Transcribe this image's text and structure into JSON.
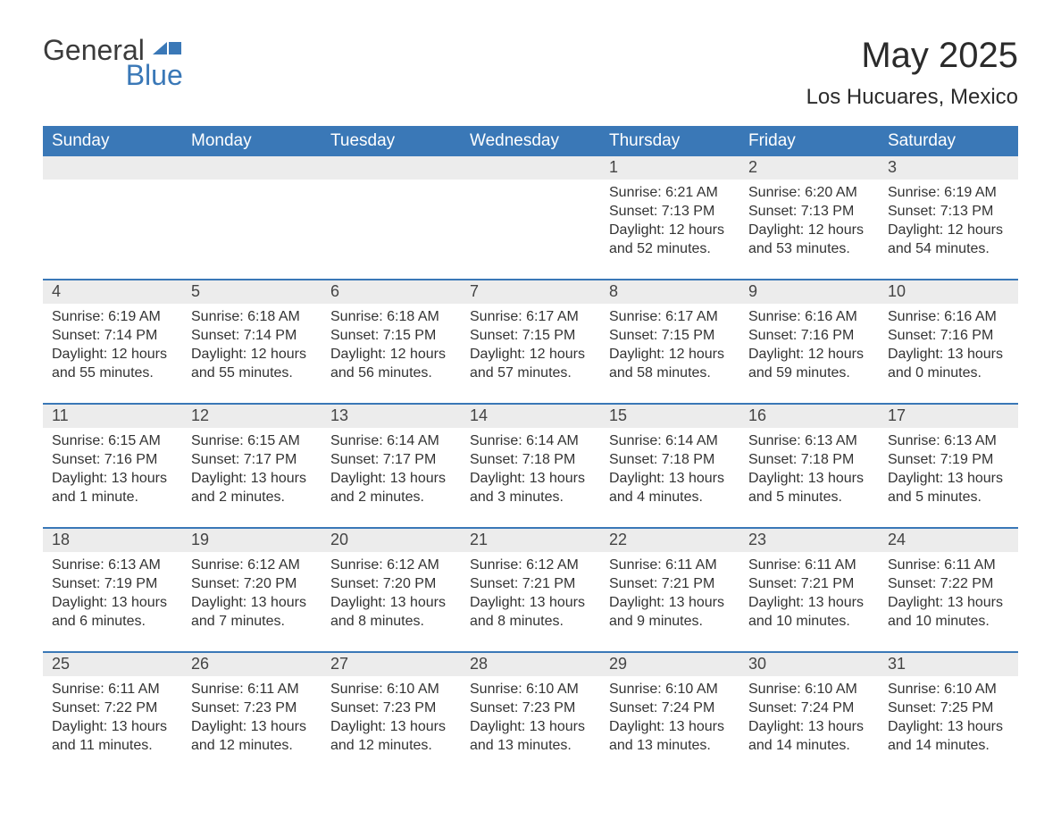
{
  "brand": {
    "general": "General",
    "blue": "Blue"
  },
  "title": "May 2025",
  "location": "Los Hucuares, Mexico",
  "colors": {
    "header_bg": "#3a78b7",
    "header_text": "#ffffff",
    "daynum_bg": "#ececec",
    "text": "#333333",
    "rule": "#3a78b7"
  },
  "daynames": [
    "Sunday",
    "Monday",
    "Tuesday",
    "Wednesday",
    "Thursday",
    "Friday",
    "Saturday"
  ],
  "weeks": [
    [
      null,
      null,
      null,
      null,
      {
        "n": "1",
        "sunrise": "Sunrise: 6:21 AM",
        "sunset": "Sunset: 7:13 PM",
        "daylight": "Daylight: 12 hours and 52 minutes."
      },
      {
        "n": "2",
        "sunrise": "Sunrise: 6:20 AM",
        "sunset": "Sunset: 7:13 PM",
        "daylight": "Daylight: 12 hours and 53 minutes."
      },
      {
        "n": "3",
        "sunrise": "Sunrise: 6:19 AM",
        "sunset": "Sunset: 7:13 PM",
        "daylight": "Daylight: 12 hours and 54 minutes."
      }
    ],
    [
      {
        "n": "4",
        "sunrise": "Sunrise: 6:19 AM",
        "sunset": "Sunset: 7:14 PM",
        "daylight": "Daylight: 12 hours and 55 minutes."
      },
      {
        "n": "5",
        "sunrise": "Sunrise: 6:18 AM",
        "sunset": "Sunset: 7:14 PM",
        "daylight": "Daylight: 12 hours and 55 minutes."
      },
      {
        "n": "6",
        "sunrise": "Sunrise: 6:18 AM",
        "sunset": "Sunset: 7:15 PM",
        "daylight": "Daylight: 12 hours and 56 minutes."
      },
      {
        "n": "7",
        "sunrise": "Sunrise: 6:17 AM",
        "sunset": "Sunset: 7:15 PM",
        "daylight": "Daylight: 12 hours and 57 minutes."
      },
      {
        "n": "8",
        "sunrise": "Sunrise: 6:17 AM",
        "sunset": "Sunset: 7:15 PM",
        "daylight": "Daylight: 12 hours and 58 minutes."
      },
      {
        "n": "9",
        "sunrise": "Sunrise: 6:16 AM",
        "sunset": "Sunset: 7:16 PM",
        "daylight": "Daylight: 12 hours and 59 minutes."
      },
      {
        "n": "10",
        "sunrise": "Sunrise: 6:16 AM",
        "sunset": "Sunset: 7:16 PM",
        "daylight": "Daylight: 13 hours and 0 minutes."
      }
    ],
    [
      {
        "n": "11",
        "sunrise": "Sunrise: 6:15 AM",
        "sunset": "Sunset: 7:16 PM",
        "daylight": "Daylight: 13 hours and 1 minute."
      },
      {
        "n": "12",
        "sunrise": "Sunrise: 6:15 AM",
        "sunset": "Sunset: 7:17 PM",
        "daylight": "Daylight: 13 hours and 2 minutes."
      },
      {
        "n": "13",
        "sunrise": "Sunrise: 6:14 AM",
        "sunset": "Sunset: 7:17 PM",
        "daylight": "Daylight: 13 hours and 2 minutes."
      },
      {
        "n": "14",
        "sunrise": "Sunrise: 6:14 AM",
        "sunset": "Sunset: 7:18 PM",
        "daylight": "Daylight: 13 hours and 3 minutes."
      },
      {
        "n": "15",
        "sunrise": "Sunrise: 6:14 AM",
        "sunset": "Sunset: 7:18 PM",
        "daylight": "Daylight: 13 hours and 4 minutes."
      },
      {
        "n": "16",
        "sunrise": "Sunrise: 6:13 AM",
        "sunset": "Sunset: 7:18 PM",
        "daylight": "Daylight: 13 hours and 5 minutes."
      },
      {
        "n": "17",
        "sunrise": "Sunrise: 6:13 AM",
        "sunset": "Sunset: 7:19 PM",
        "daylight": "Daylight: 13 hours and 5 minutes."
      }
    ],
    [
      {
        "n": "18",
        "sunrise": "Sunrise: 6:13 AM",
        "sunset": "Sunset: 7:19 PM",
        "daylight": "Daylight: 13 hours and 6 minutes."
      },
      {
        "n": "19",
        "sunrise": "Sunrise: 6:12 AM",
        "sunset": "Sunset: 7:20 PM",
        "daylight": "Daylight: 13 hours and 7 minutes."
      },
      {
        "n": "20",
        "sunrise": "Sunrise: 6:12 AM",
        "sunset": "Sunset: 7:20 PM",
        "daylight": "Daylight: 13 hours and 8 minutes."
      },
      {
        "n": "21",
        "sunrise": "Sunrise: 6:12 AM",
        "sunset": "Sunset: 7:21 PM",
        "daylight": "Daylight: 13 hours and 8 minutes."
      },
      {
        "n": "22",
        "sunrise": "Sunrise: 6:11 AM",
        "sunset": "Sunset: 7:21 PM",
        "daylight": "Daylight: 13 hours and 9 minutes."
      },
      {
        "n": "23",
        "sunrise": "Sunrise: 6:11 AM",
        "sunset": "Sunset: 7:21 PM",
        "daylight": "Daylight: 13 hours and 10 minutes."
      },
      {
        "n": "24",
        "sunrise": "Sunrise: 6:11 AM",
        "sunset": "Sunset: 7:22 PM",
        "daylight": "Daylight: 13 hours and 10 minutes."
      }
    ],
    [
      {
        "n": "25",
        "sunrise": "Sunrise: 6:11 AM",
        "sunset": "Sunset: 7:22 PM",
        "daylight": "Daylight: 13 hours and 11 minutes."
      },
      {
        "n": "26",
        "sunrise": "Sunrise: 6:11 AM",
        "sunset": "Sunset: 7:23 PM",
        "daylight": "Daylight: 13 hours and 12 minutes."
      },
      {
        "n": "27",
        "sunrise": "Sunrise: 6:10 AM",
        "sunset": "Sunset: 7:23 PM",
        "daylight": "Daylight: 13 hours and 12 minutes."
      },
      {
        "n": "28",
        "sunrise": "Sunrise: 6:10 AM",
        "sunset": "Sunset: 7:23 PM",
        "daylight": "Daylight: 13 hours and 13 minutes."
      },
      {
        "n": "29",
        "sunrise": "Sunrise: 6:10 AM",
        "sunset": "Sunset: 7:24 PM",
        "daylight": "Daylight: 13 hours and 13 minutes."
      },
      {
        "n": "30",
        "sunrise": "Sunrise: 6:10 AM",
        "sunset": "Sunset: 7:24 PM",
        "daylight": "Daylight: 13 hours and 14 minutes."
      },
      {
        "n": "31",
        "sunrise": "Sunrise: 6:10 AM",
        "sunset": "Sunset: 7:25 PM",
        "daylight": "Daylight: 13 hours and 14 minutes."
      }
    ]
  ]
}
